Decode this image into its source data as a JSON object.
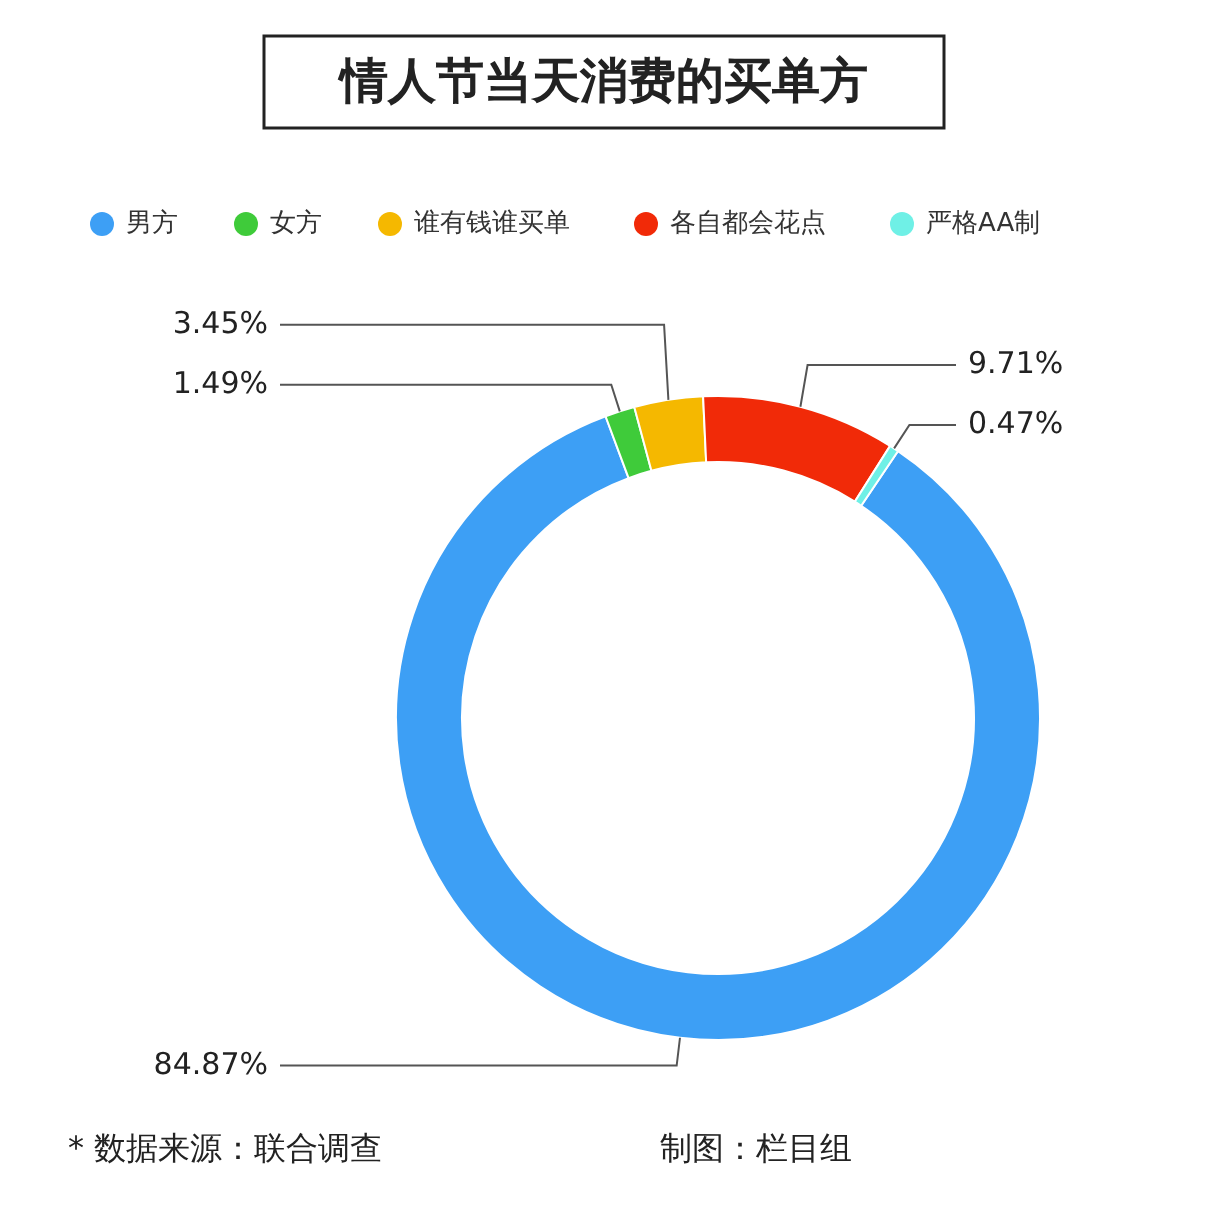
{
  "chart_data": {
    "type": "donut",
    "title": "情人节当天消费的买单方",
    "categories": [
      "男方",
      "女方",
      "谁有钱谁买单",
      "各自都会花点",
      "严格AA制"
    ],
    "values": [
      84.87,
      1.49,
      3.45,
      9.71,
      0.47
    ],
    "value_labels": [
      "84.87%",
      "1.49%",
      "3.45%",
      "9.71%",
      "0.47%"
    ],
    "colors": [
      "#3d9ff5",
      "#3fcb3a",
      "#f5b800",
      "#f12a08",
      "#6ff0e6"
    ],
    "legend": "top",
    "annotations": [
      "* 数据来源：联合调查",
      "制图：栏目组"
    ]
  }
}
